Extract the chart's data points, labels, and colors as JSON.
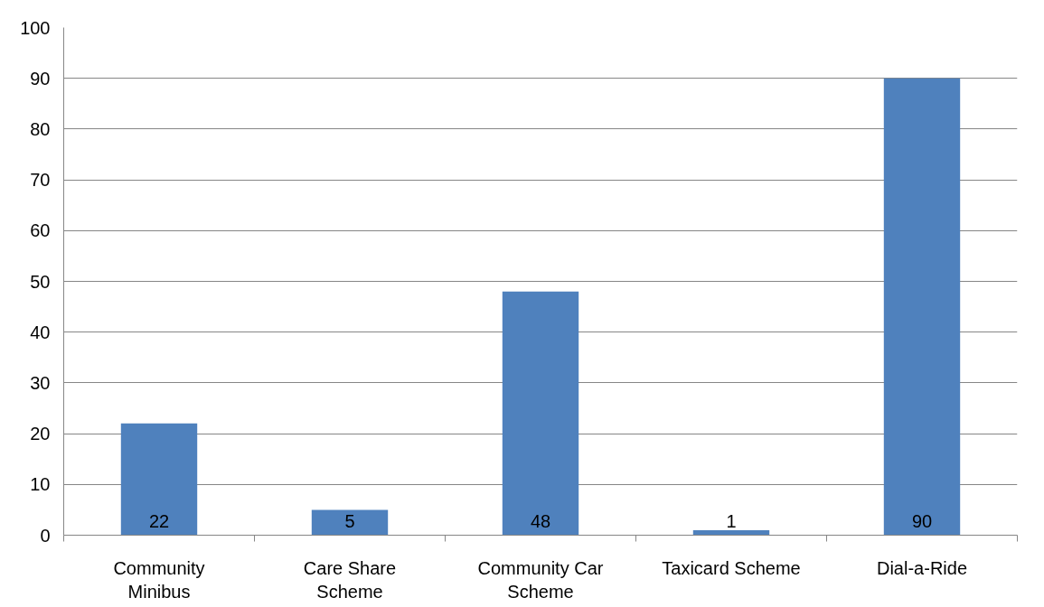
{
  "chart_data": {
    "type": "bar",
    "categories": [
      "Community Minibus",
      "Care Share Scheme",
      "Community Car Scheme",
      "Taxicard Scheme",
      "Dial-a-Ride"
    ],
    "values": [
      22,
      5,
      48,
      1,
      90
    ],
    "color": "#4f81bd",
    "ylim": [
      0,
      100
    ],
    "yticks": [
      0,
      10,
      20,
      30,
      40,
      50,
      60,
      70,
      80,
      90,
      100
    ],
    "grid": "y",
    "data_labels": true
  }
}
